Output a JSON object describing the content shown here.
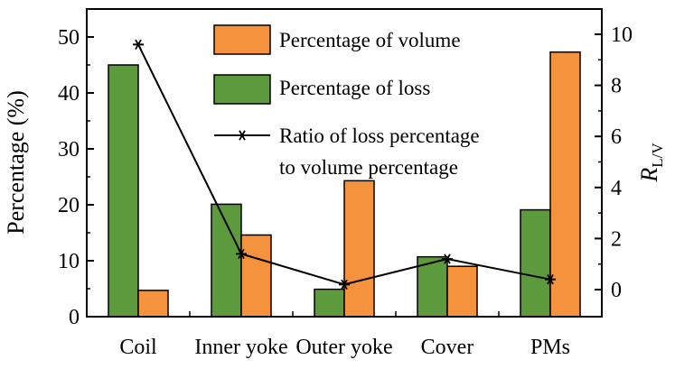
{
  "chart_data": {
    "type": "bar",
    "categories": [
      "Coil",
      "Inner yoke",
      "Outer yoke",
      "Cover",
      "PMs"
    ],
    "series": [
      {
        "name": "Percentage of loss",
        "axis": "left",
        "color": "#5d9a3d",
        "values": [
          45.0,
          20.1,
          4.9,
          10.7,
          19.1
        ]
      },
      {
        "name": "Percentage of volume",
        "axis": "left",
        "color": "#f5923e",
        "values": [
          4.7,
          14.6,
          24.3,
          9.0,
          47.3
        ]
      }
    ],
    "line_series": {
      "name": "Ratio of loss percentage to volume percentage",
      "axis": "right",
      "color": "#000000",
      "marker": "asterisk",
      "values": [
        9.6,
        1.4,
        0.2,
        1.2,
        0.4
      ]
    },
    "legend": [
      {
        "key": "volume",
        "color": "#f5923e",
        "text": "Percentage of volume"
      },
      {
        "key": "loss",
        "color": "#5d9a3d",
        "text": "Percentage of loss"
      },
      {
        "key": "ratio",
        "text_line1": "Ratio of loss percentage",
        "text_line2": "to volume percentage"
      }
    ],
    "ylabel": "Percentage (%)",
    "ylabel_right_main": "R",
    "ylabel_right_sub": "L/V",
    "ylim": [
      0,
      55
    ],
    "y2lim": [
      -1,
      11
    ],
    "yticks": [
      "0",
      "10",
      "20",
      "30",
      "40",
      "50"
    ],
    "y2ticks": [
      "0",
      "2",
      "4",
      "6",
      "8",
      "10"
    ],
    "grid": false,
    "legend_position": "top-right"
  }
}
